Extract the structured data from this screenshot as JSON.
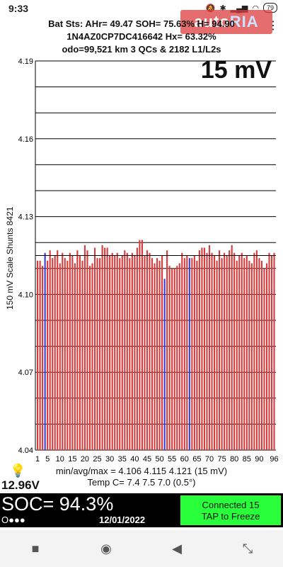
{
  "status": {
    "time": "9:33",
    "icons": [
      "bell-icon",
      "bluetooth-icon",
      "signal-icon",
      "wifi-icon"
    ],
    "battery": "79"
  },
  "watermark": {
    "text1": "auto",
    "text2": "RIA"
  },
  "header": {
    "line1": "Bat Sts:  AHr= 49.47  SOH= 75.63%  H= 94.90",
    "line2": "1N4AZ0CP7DC416642   Hx= 63.32%",
    "line3": "odo=99,521 km 3 QCs & 2182 L1/L2s",
    "menu_icon": "overflow-menu-icon"
  },
  "scale_label": "150 mV Scale   Shunts 8421",
  "big_label": "15 mV",
  "chart_data": {
    "type": "bar",
    "ylim": [
      4.04,
      4.19
    ],
    "yticks": [
      "4.19",
      "4.16",
      "4.13",
      "4.10",
      "4.07",
      "4.04"
    ],
    "xticks": [
      "1",
      "5",
      "10",
      "15",
      "20",
      "25",
      "30",
      "35",
      "40",
      "45",
      "50",
      "55",
      "60",
      "65",
      "70",
      "75",
      "80",
      "85",
      "90",
      "96"
    ],
    "reference_line": 4.115,
    "bar_color": "#d93a3a",
    "highlight_color": "#3a3ad9",
    "shunt_cells": [
      4,
      52,
      62
    ],
    "values": [
      4.113,
      4.113,
      4.111,
      4.116,
      4.113,
      4.117,
      4.114,
      4.115,
      4.117,
      4.112,
      4.116,
      4.114,
      4.113,
      4.116,
      4.115,
      4.112,
      4.117,
      4.115,
      4.113,
      4.119,
      4.117,
      4.111,
      4.112,
      4.118,
      4.114,
      4.114,
      4.119,
      4.118,
      4.118,
      4.115,
      4.116,
      4.115,
      4.116,
      4.114,
      4.115,
      4.117,
      4.116,
      4.114,
      4.116,
      4.115,
      4.118,
      4.121,
      4.121,
      4.115,
      4.117,
      4.116,
      4.114,
      4.112,
      4.114,
      4.113,
      4.115,
      4.106,
      4.117,
      4.111,
      4.11,
      4.11,
      4.111,
      4.112,
      4.116,
      4.114,
      4.115,
      4.114,
      4.114,
      4.115,
      4.113,
      4.117,
      4.118,
      4.118,
      4.116,
      4.119,
      4.116,
      4.115,
      4.113,
      4.117,
      4.114,
      4.116,
      4.115,
      4.117,
      4.119,
      4.116,
      4.113,
      4.115,
      4.116,
      4.114,
      4.115,
      4.113,
      4.112,
      4.116,
      4.117,
      4.114,
      4.113,
      4.11,
      4.112,
      4.116,
      4.115,
      4.116
    ]
  },
  "stats": {
    "line1": "min/avg/max = 4.106  4.115  4.121  (15 mV)",
    "line2": "Temp C= 7.4  7.5  7.0  (0.5°)"
  },
  "voltage": "12.96V",
  "soc": {
    "text": "SOC= 94.3%",
    "dots": "O●●●",
    "date": "12/01/2022"
  },
  "connect_button": {
    "line1": "Connected 15",
    "line2": "TAP to Freeze"
  },
  "nav": {
    "square": "■",
    "circle": "◉",
    "back": "◀",
    "extra": "⤡"
  }
}
